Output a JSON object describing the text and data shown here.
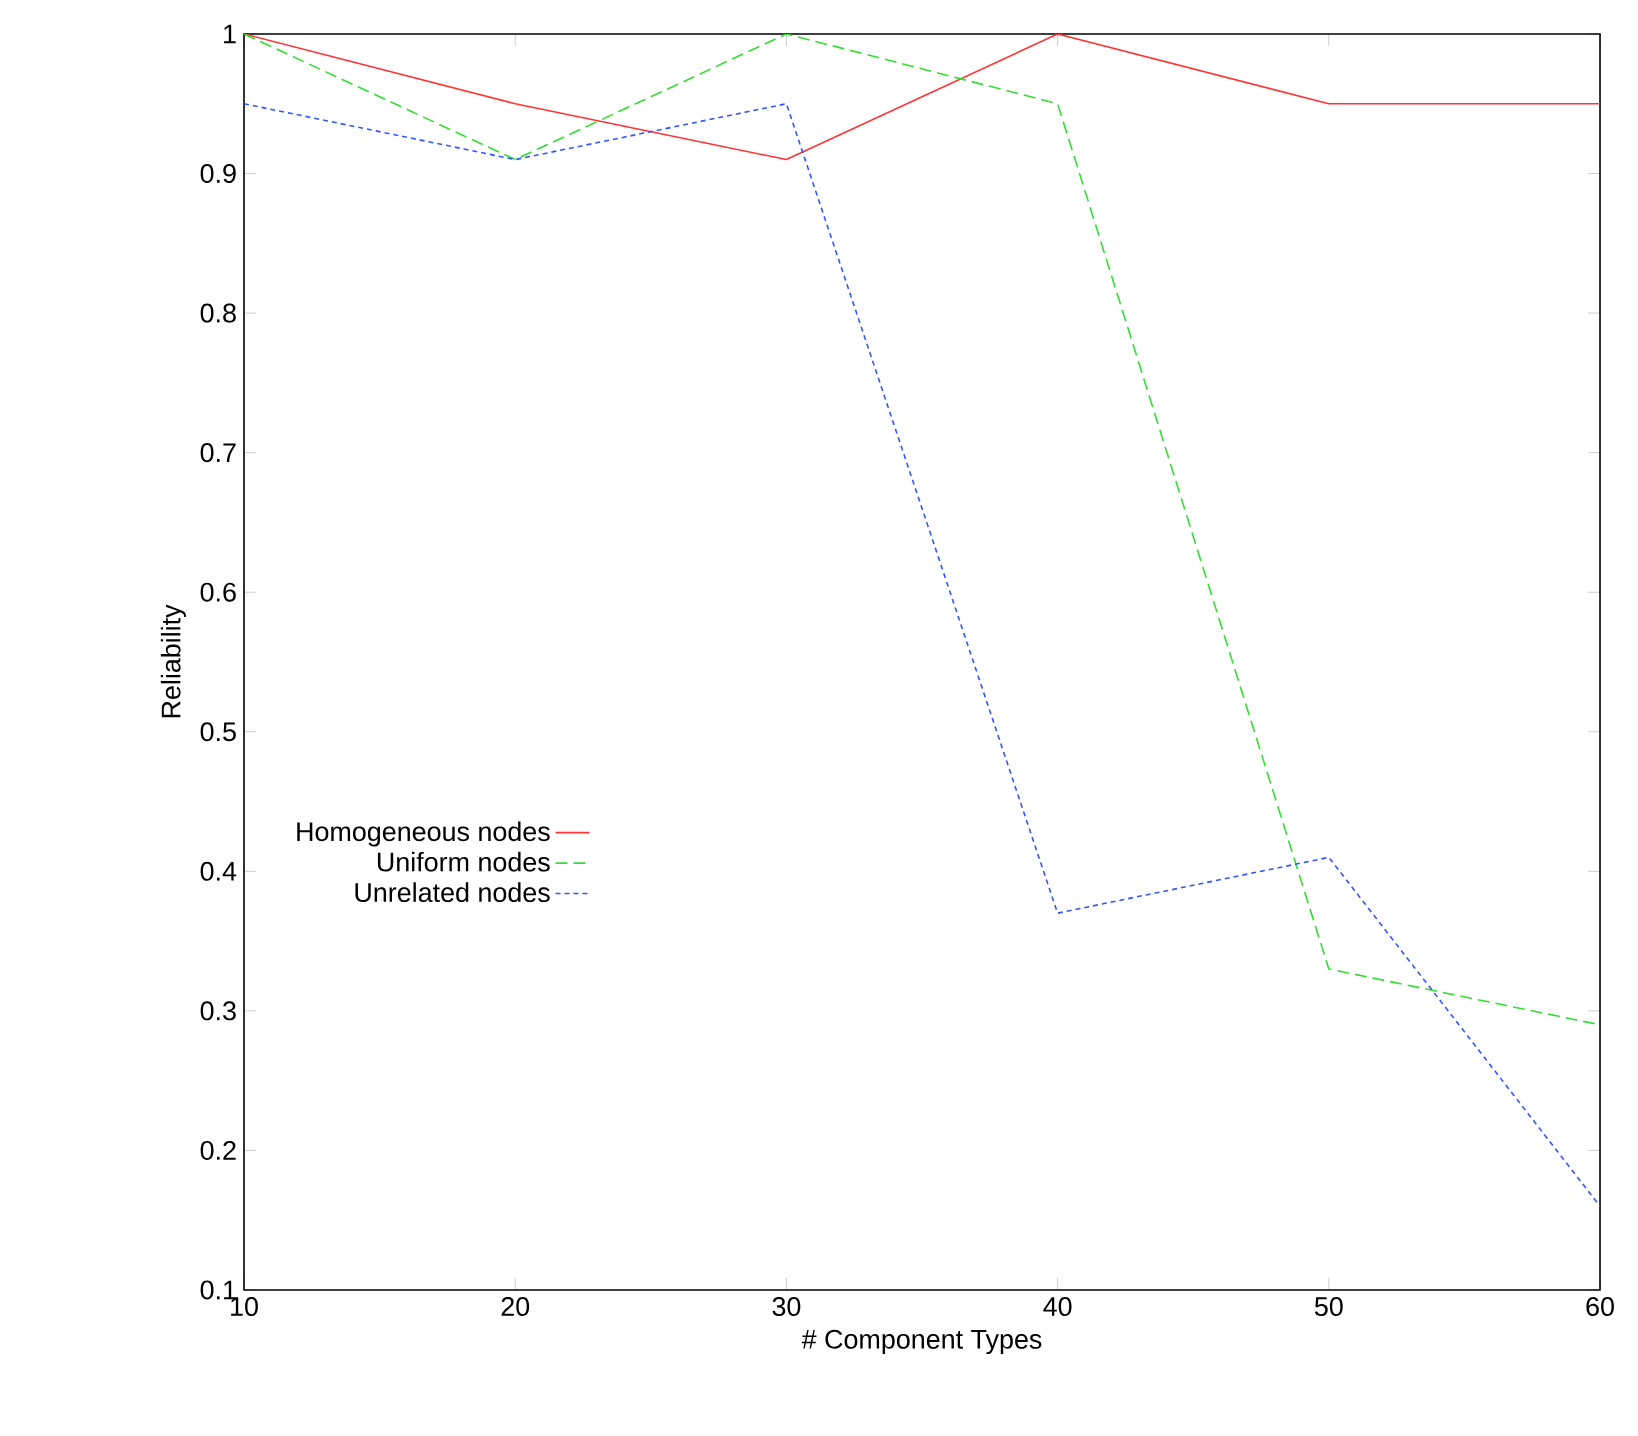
{
  "chart_data": {
    "type": "line",
    "xlabel": "# Component Types",
    "ylabel": "Reliability",
    "x": [
      10,
      20,
      30,
      40,
      50,
      60
    ],
    "series": [
      {
        "name": "Homogeneous nodes",
        "color": "#ff3333",
        "line_style": "solid",
        "values": [
          1,
          0.95,
          0.91,
          1,
          0.95,
          0.95
        ]
      },
      {
        "name": "Uniform nodes",
        "color": "#33dd33",
        "line_style": "dashed",
        "values": [
          1,
          0.91,
          1,
          0.95,
          0.33,
          0.29
        ]
      },
      {
        "name": "Unrelated nodes",
        "color": "#3355ff",
        "line_style": "dotted",
        "values": [
          0.95,
          0.91,
          0.95,
          0.37,
          0.41,
          0.16
        ]
      }
    ],
    "xlim": [
      10,
      60
    ],
    "ylim": [
      0.1,
      1
    ],
    "xticks": [
      10,
      20,
      30,
      40,
      50,
      60
    ],
    "yticks": [
      0.1,
      0.2,
      0.3,
      0.4,
      0.5,
      0.6,
      0.7,
      0.8,
      0.9,
      1
    ],
    "grid": false,
    "legend": "left"
  }
}
